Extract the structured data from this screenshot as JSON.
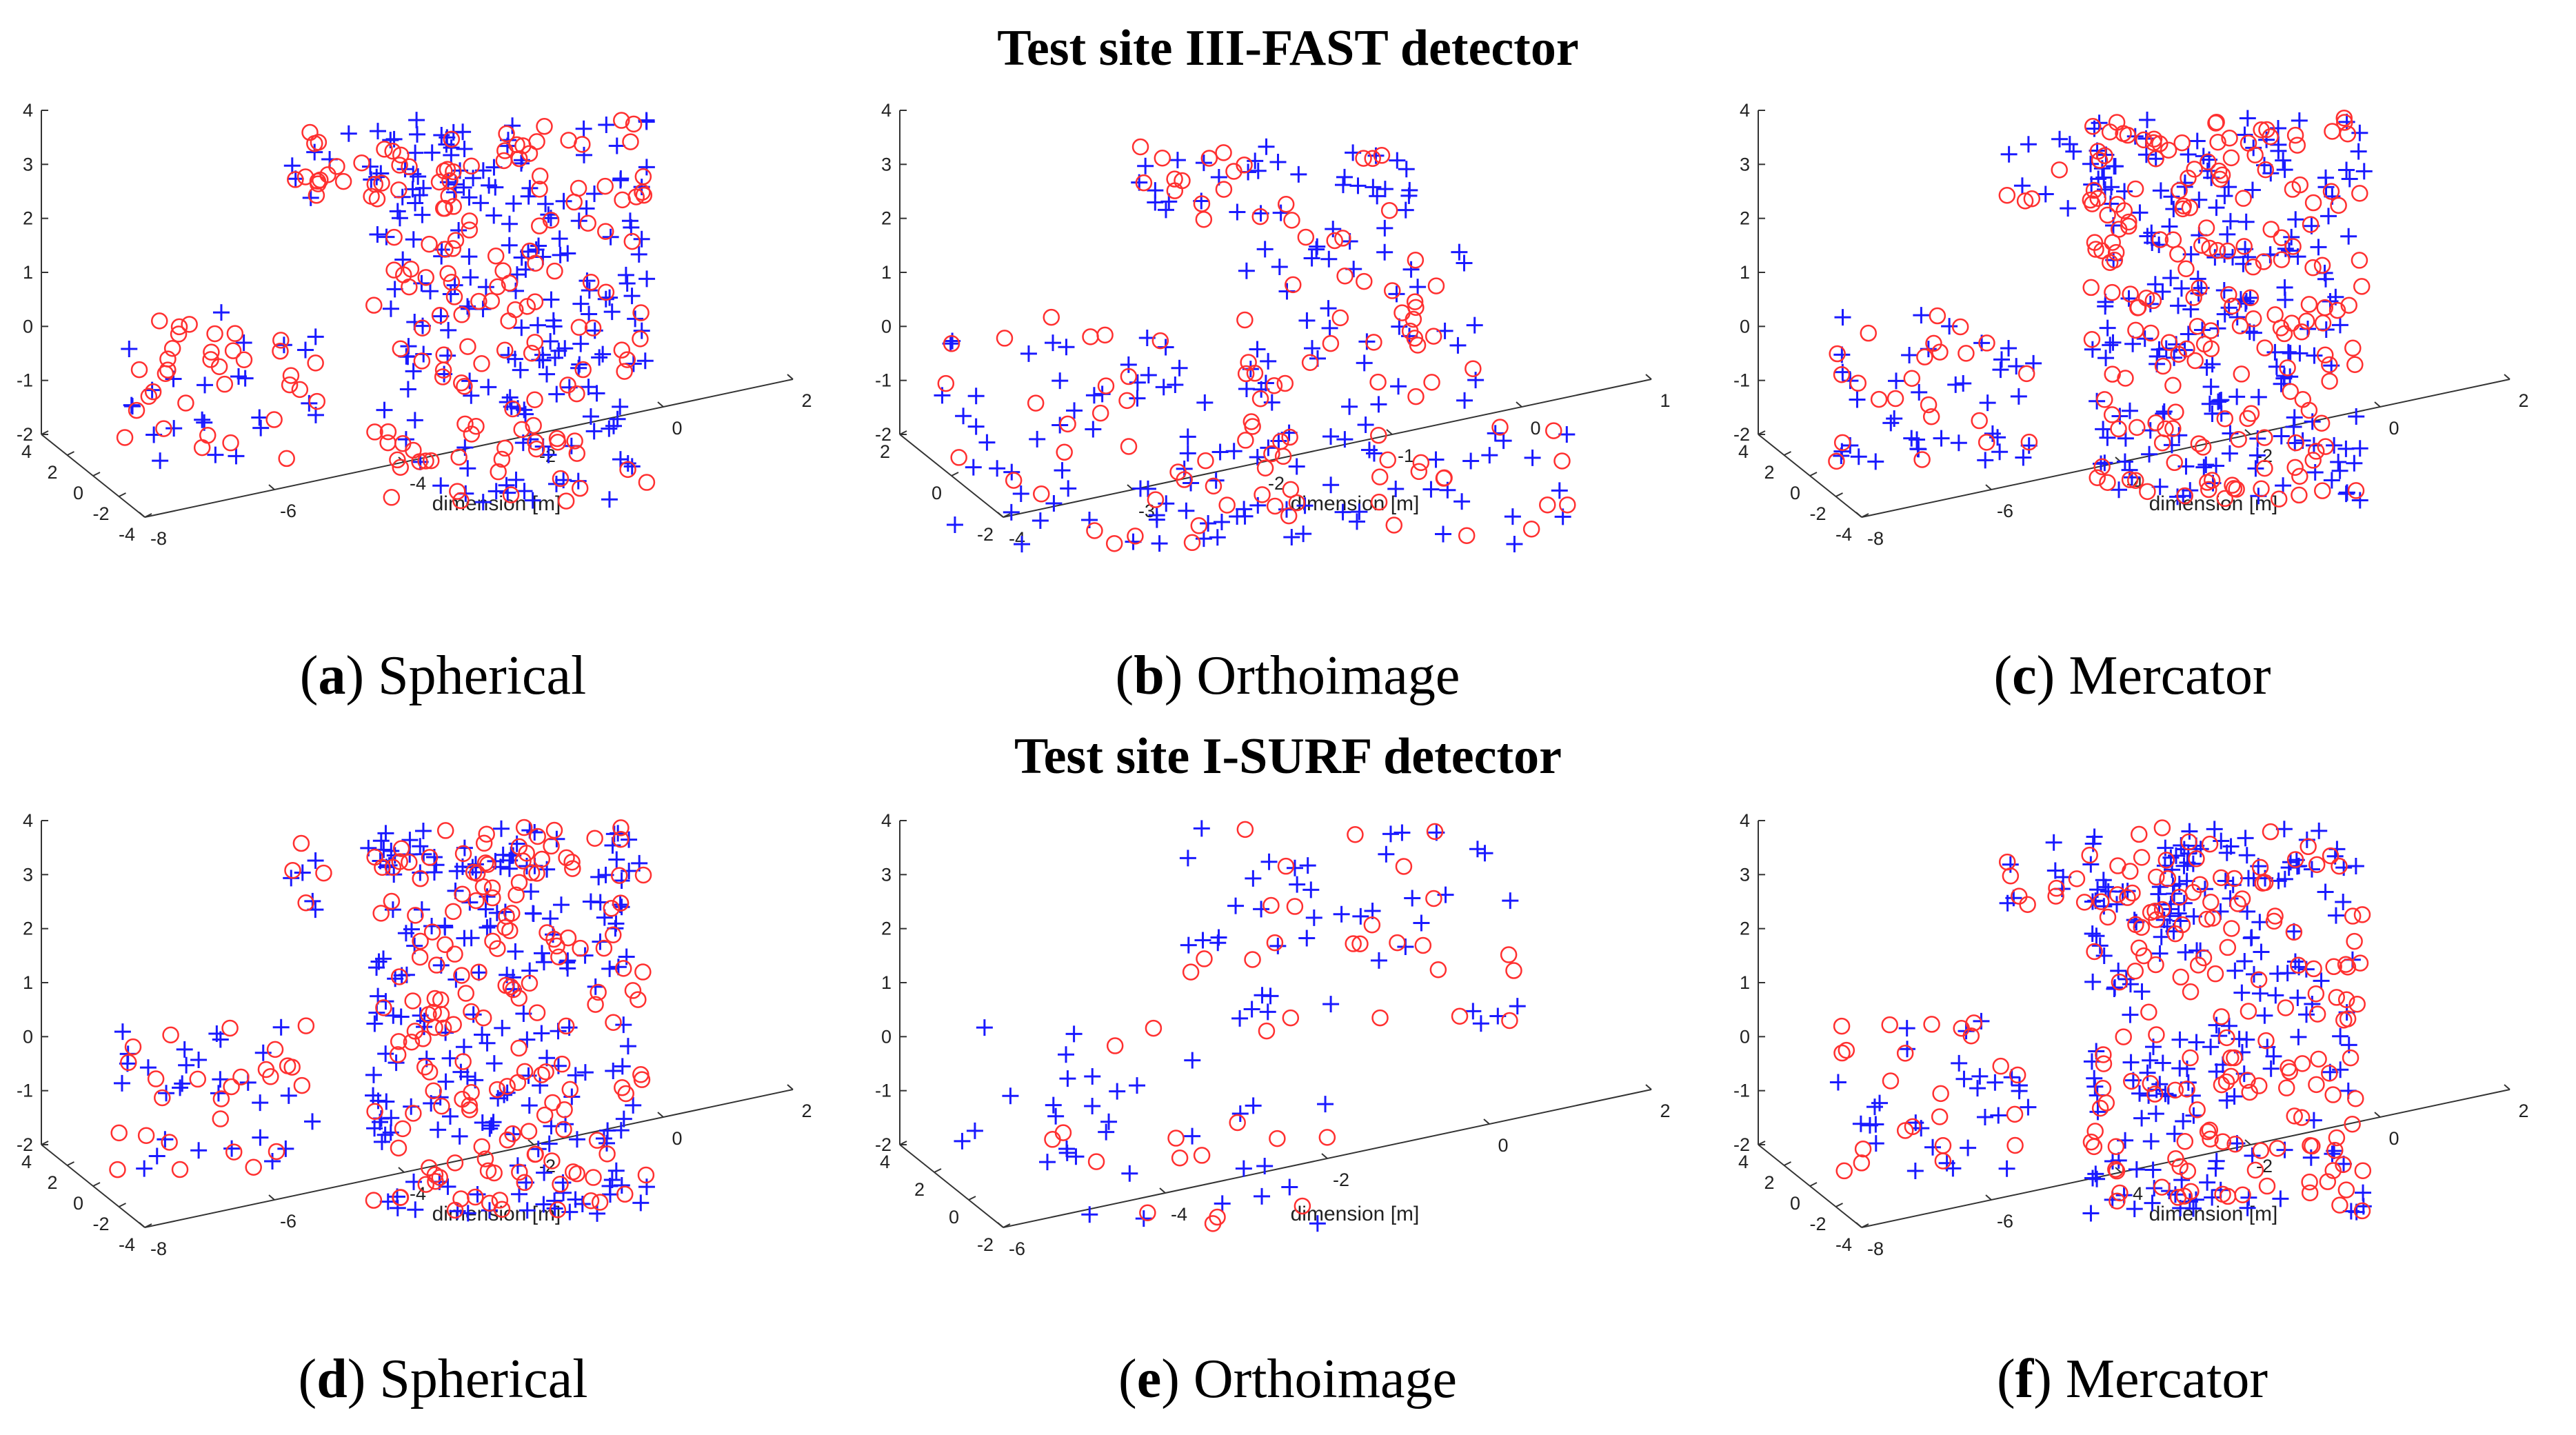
{
  "row_titles": [
    "Test site III-FAST detector",
    "Test site I-SURF detector"
  ],
  "colors": {
    "plus_marker": "#1a1aff",
    "circle_marker": "#ff3030",
    "axis": "#333333"
  },
  "chart_data": [
    {
      "type": "scatter",
      "projection": "3d",
      "panel_letter": "a",
      "panel_name": "Spherical",
      "xlabel": "dimension [m]",
      "z_ticks": [
        "-2",
        "-1",
        "0",
        "1",
        "2",
        "3",
        "4"
      ],
      "y_ticks": [
        "-4",
        "-2",
        "0",
        "2",
        "4"
      ],
      "x_ticks": [
        "-8",
        "-6",
        "-4",
        "-2",
        "0",
        "2"
      ],
      "series": [
        {
          "name": "plus",
          "marker": "+",
          "cloud": "building",
          "count": 230,
          "seed": 11
        },
        {
          "name": "circle",
          "marker": "o",
          "cloud": "building",
          "count": 190,
          "seed": 12
        }
      ]
    },
    {
      "type": "scatter",
      "projection": "3d",
      "panel_letter": "b",
      "panel_name": "Orthoimage",
      "xlabel": "dimension [m]",
      "z_ticks": [
        "-2",
        "-1",
        "0",
        "1",
        "2",
        "3",
        "4"
      ],
      "y_ticks": [
        "-2",
        "0",
        "2"
      ],
      "x_ticks": [
        "-4",
        "-3",
        "-2",
        "-1",
        "0",
        "1"
      ],
      "series": [
        {
          "name": "plus",
          "marker": "+",
          "cloud": "layered",
          "count": 170,
          "seed": 21
        },
        {
          "name": "circle",
          "marker": "o",
          "cloud": "layered",
          "count": 110,
          "seed": 22
        }
      ]
    },
    {
      "type": "scatter",
      "projection": "3d",
      "panel_letter": "c",
      "panel_name": "Mercator",
      "xlabel": "dimension [m]",
      "z_ticks": [
        "-2",
        "-1",
        "0",
        "1",
        "2",
        "3",
        "4"
      ],
      "y_ticks": [
        "-4",
        "-2",
        "0",
        "2",
        "4"
      ],
      "x_ticks": [
        "-8",
        "-6",
        "-4",
        "-2",
        "0",
        "2"
      ],
      "series": [
        {
          "name": "plus",
          "marker": "+",
          "cloud": "building",
          "count": 260,
          "seed": 31
        },
        {
          "name": "circle",
          "marker": "o",
          "cloud": "building",
          "count": 210,
          "seed": 32
        }
      ]
    },
    {
      "type": "scatter",
      "projection": "3d",
      "panel_letter": "d",
      "panel_name": "Spherical",
      "xlabel": "dimension [m]",
      "z_ticks": [
        "-2",
        "-1",
        "0",
        "1",
        "2",
        "3",
        "4"
      ],
      "y_ticks": [
        "-4",
        "-2",
        "0",
        "2",
        "4"
      ],
      "x_ticks": [
        "-8",
        "-6",
        "-4",
        "-2",
        "0",
        "2"
      ],
      "series": [
        {
          "name": "plus",
          "marker": "+",
          "cloud": "building",
          "count": 250,
          "seed": 41
        },
        {
          "name": "circle",
          "marker": "o",
          "cloud": "building",
          "count": 200,
          "seed": 42
        }
      ]
    },
    {
      "type": "scatter",
      "projection": "3d",
      "panel_letter": "e",
      "panel_name": "Orthoimage",
      "xlabel": "dimension [m]",
      "z_ticks": [
        "-2",
        "-1",
        "0",
        "1",
        "2",
        "3",
        "4"
      ],
      "y_ticks": [
        "-2",
        "0",
        "2",
        "4"
      ],
      "x_ticks": [
        "-6",
        "-4",
        "-2",
        "0",
        "2"
      ],
      "series": [
        {
          "name": "plus",
          "marker": "+",
          "cloud": "sparse",
          "count": 75,
          "seed": 51
        },
        {
          "name": "circle",
          "marker": "o",
          "cloud": "sparse",
          "count": 40,
          "seed": 52
        }
      ]
    },
    {
      "type": "scatter",
      "projection": "3d",
      "panel_letter": "f",
      "panel_name": "Mercator",
      "xlabel": "dimension [m]",
      "z_ticks": [
        "-2",
        "-1",
        "0",
        "1",
        "2",
        "3",
        "4"
      ],
      "y_ticks": [
        "-4",
        "-2",
        "0",
        "2",
        "4"
      ],
      "x_ticks": [
        "-8",
        "-6",
        "-4",
        "-2",
        "0",
        "2"
      ],
      "series": [
        {
          "name": "plus",
          "marker": "+",
          "cloud": "building",
          "count": 250,
          "seed": 61
        },
        {
          "name": "circle",
          "marker": "o",
          "cloud": "building",
          "count": 190,
          "seed": 62
        }
      ]
    }
  ]
}
